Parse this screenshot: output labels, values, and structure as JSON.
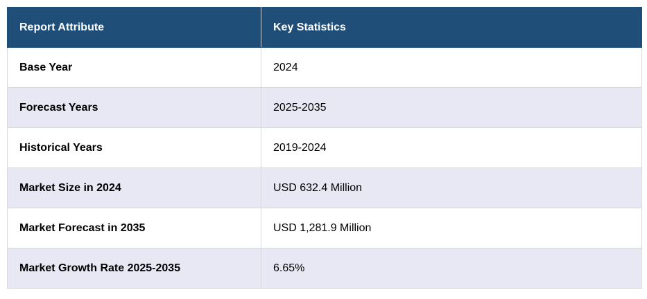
{
  "table": {
    "headers": {
      "attribute": "Report Attribute",
      "statistics": "Key Statistics"
    },
    "rows": [
      {
        "attribute": "Base Year",
        "value": "2024"
      },
      {
        "attribute": "Forecast Years",
        "value": "2025-2035"
      },
      {
        "attribute": "Historical Years",
        "value": "2019-2024"
      },
      {
        "attribute": "Market Size in 2024",
        "value": "USD 632.4 Million"
      },
      {
        "attribute": "Market Forecast in 2035",
        "value": "USD 1,281.9 Million"
      },
      {
        "attribute": "Market Growth Rate 2025-2035",
        "value": "6.65%"
      }
    ]
  },
  "colors": {
    "header_background": "#1f4e79",
    "header_text": "#ffffff",
    "striped_row": "#e8e8f4",
    "plain_row": "#ffffff"
  }
}
